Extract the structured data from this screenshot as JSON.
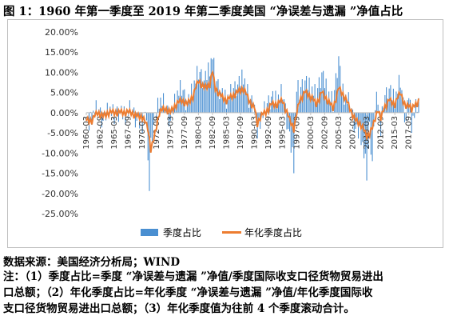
{
  "title": "图 1：1960 年第一季度至 2019 年第二季度美国 “净误差与遗漏 ”净值占比",
  "source": "数据来源：美国经济分析局；WIND",
  "notes": [
    "注：（1）季度占比=季度 “净误差与遗漏 ”净值/季度国际收支口径货物贸易进出",
    "口总额；（2）年化季度占比=年化季度 “净误差与遗漏 ”净值/年化季度国际收",
    "支口径货物贸易进出口总额；（3）年化季度值为往前 4 个季度滚动合计。"
  ],
  "colors": {
    "bar": "#4a8fd1",
    "line": "#ed7d31",
    "axis": "#bfbfbf"
  },
  "chart_data": {
    "type": "bar+line",
    "yticks": [
      "20.00%",
      "15.00%",
      "10.00%",
      "5.00%",
      "0.00%",
      "-5.00%",
      "-10.00%",
      "-15.00%",
      "-20.00%",
      "-25.00%"
    ],
    "ylim": [
      -25,
      20
    ],
    "xticks": [
      "1960-03",
      "1962-09",
      "1965-03",
      "1967-09",
      "1970-03",
      "1972-09",
      "1975-03",
      "1977-09",
      "1980-03",
      "1982-09",
      "1985-03",
      "1987-09",
      "1990-03",
      "1992-09",
      "1995-03",
      "1997-09",
      "2000-03",
      "2002-09",
      "2005-03",
      "2007-09",
      "2010-03",
      "2012-09",
      "2015-03",
      "2017-09"
    ],
    "series": [
      {
        "name": "季度占比",
        "kind": "bar",
        "anchors": [
          [
            "1960-03",
            0
          ],
          [
            "1960-09",
            -3
          ],
          [
            "1961-03",
            -1
          ],
          [
            "1962-03",
            1
          ],
          [
            "1963-03",
            -2
          ],
          [
            "1964-03",
            1
          ],
          [
            "1965-03",
            -1
          ],
          [
            "1966-03",
            0.5
          ],
          [
            "1967-03",
            -1
          ],
          [
            "1968-03",
            1
          ],
          [
            "1969-03",
            -2
          ],
          [
            "1970-03",
            -3
          ],
          [
            "1970-09",
            1
          ],
          [
            "1971-03",
            -10
          ],
          [
            "1971-06",
            -20
          ],
          [
            "1971-09",
            -8
          ],
          [
            "1972-03",
            -3
          ],
          [
            "1973-03",
            3
          ],
          [
            "1974-03",
            2
          ],
          [
            "1975-03",
            -2
          ],
          [
            "1976-03",
            4
          ],
          [
            "1977-03",
            6
          ],
          [
            "1978-03",
            2
          ],
          [
            "1979-03",
            6
          ],
          [
            "1980-03",
            10
          ],
          [
            "1981-03",
            8
          ],
          [
            "1982-03",
            11
          ],
          [
            "1982-09",
            14
          ],
          [
            "1983-03",
            8
          ],
          [
            "1984-03",
            5
          ],
          [
            "1985-03",
            3
          ],
          [
            "1986-03",
            5
          ],
          [
            "1987-03",
            7
          ],
          [
            "1988-03",
            9
          ],
          [
            "1989-03",
            3
          ],
          [
            "1990-03",
            2
          ],
          [
            "1990-09",
            -5
          ],
          [
            "1991-03",
            -2
          ],
          [
            "1992-03",
            1
          ],
          [
            "1993-03",
            4
          ],
          [
            "1994-03",
            3
          ],
          [
            "1995-03",
            5
          ],
          [
            "1996-03",
            -4
          ],
          [
            "1997-03",
            -13
          ],
          [
            "1997-09",
            6
          ],
          [
            "1998-03",
            5
          ],
          [
            "1999-03",
            8
          ],
          [
            "2000-03",
            6
          ],
          [
            "2001-03",
            4
          ],
          [
            "2002-03",
            10
          ],
          [
            "2003-03",
            5
          ],
          [
            "2004-03",
            2
          ],
          [
            "2005-03",
            14
          ],
          [
            "2005-09",
            6
          ],
          [
            "2006-03",
            4
          ],
          [
            "2007-03",
            2
          ],
          [
            "2008-03",
            -4
          ],
          [
            "2009-03",
            -6
          ],
          [
            "2010-03",
            -15
          ],
          [
            "2010-09",
            -4
          ],
          [
            "2011-03",
            -12
          ],
          [
            "2011-09",
            2
          ],
          [
            "2012-03",
            4
          ],
          [
            "2012-09",
            -5
          ],
          [
            "2013-03",
            3
          ],
          [
            "2014-03",
            6
          ],
          [
            "2015-03",
            3
          ],
          [
            "2016-03",
            8
          ],
          [
            "2016-09",
            2
          ],
          [
            "2017-03",
            -2
          ],
          [
            "2017-09",
            5
          ],
          [
            "2018-03",
            -3
          ],
          [
            "2019-03",
            2
          ],
          [
            "2019-06",
            3
          ]
        ]
      },
      {
        "name": "年化季度占比",
        "kind": "line",
        "anchors": [
          [
            "1960-03",
            -2
          ],
          [
            "1961-03",
            -2
          ],
          [
            "1962-03",
            0
          ],
          [
            "1963-03",
            -1
          ],
          [
            "1964-03",
            0
          ],
          [
            "1965-03",
            0
          ],
          [
            "1966-03",
            0
          ],
          [
            "1967-03",
            0
          ],
          [
            "1968-03",
            0
          ],
          [
            "1969-03",
            -1
          ],
          [
            "1970-03",
            -1
          ],
          [
            "1971-03",
            -4
          ],
          [
            "1971-09",
            -9
          ],
          [
            "1972-03",
            -7
          ],
          [
            "1973-03",
            0
          ],
          [
            "1974-03",
            1
          ],
          [
            "1975-03",
            0
          ],
          [
            "1976-03",
            2
          ],
          [
            "1977-03",
            3
          ],
          [
            "1978-03",
            2
          ],
          [
            "1979-03",
            4
          ],
          [
            "1980-03",
            8
          ],
          [
            "1981-03",
            6
          ],
          [
            "1982-03",
            7
          ],
          [
            "1982-09",
            10
          ],
          [
            "1983-03",
            6
          ],
          [
            "1984-03",
            4
          ],
          [
            "1985-03",
            3
          ],
          [
            "1986-03",
            4
          ],
          [
            "1987-03",
            5
          ],
          [
            "1988-03",
            6
          ],
          [
            "1989-03",
            3
          ],
          [
            "1990-03",
            1
          ],
          [
            "1990-09",
            -3
          ],
          [
            "1991-03",
            -1
          ],
          [
            "1992-03",
            0
          ],
          [
            "1993-03",
            2
          ],
          [
            "1994-03",
            2
          ],
          [
            "1995-03",
            3
          ],
          [
            "1996-03",
            -1
          ],
          [
            "1997-03",
            -4
          ],
          [
            "1998-03",
            3
          ],
          [
            "1999-03",
            5
          ],
          [
            "2000-03",
            4
          ],
          [
            "2001-03",
            2
          ],
          [
            "2002-03",
            5
          ],
          [
            "2003-03",
            3
          ],
          [
            "2004-03",
            1
          ],
          [
            "2005-03",
            6
          ],
          [
            "2006-03",
            4
          ],
          [
            "2007-03",
            1
          ],
          [
            "2008-03",
            -2
          ],
          [
            "2009-03",
            -3
          ],
          [
            "2010-03",
            -6
          ],
          [
            "2011-03",
            -4
          ],
          [
            "2012-03",
            1
          ],
          [
            "2012-09",
            -2
          ],
          [
            "2013-03",
            1
          ],
          [
            "2014-03",
            3
          ],
          [
            "2015-03",
            2
          ],
          [
            "2016-03",
            5
          ],
          [
            "2017-03",
            1
          ],
          [
            "2017-09",
            2
          ],
          [
            "2018-03",
            1
          ],
          [
            "2019-03",
            2
          ],
          [
            "2019-06",
            3
          ]
        ]
      }
    ],
    "legend": "bottom",
    "grid": false
  }
}
